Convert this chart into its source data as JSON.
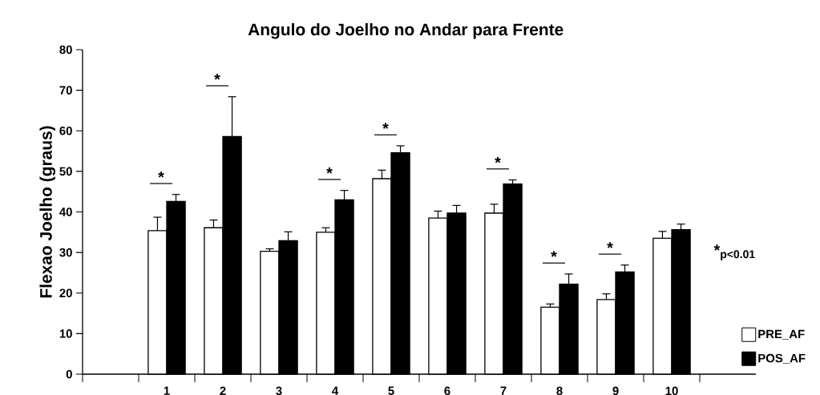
{
  "chart_data": {
    "type": "bar",
    "title": "Angulo do Joelho no Andar para Frente",
    "ylabel": "Flexao Joelho (graus)",
    "categories": [
      "1",
      "2",
      "3",
      "4",
      "5",
      "6",
      "7",
      "8",
      "9",
      "10"
    ],
    "series": [
      {
        "name": "PRE_AF",
        "color": "#ffffff",
        "values": [
          35.4,
          36.1,
          30.3,
          35.0,
          48.2,
          38.5,
          39.7,
          16.5,
          18.4,
          33.5
        ],
        "errors": [
          [
            35.4,
            38.7
          ],
          [
            36.1,
            38.0
          ],
          [
            30.3,
            30.9
          ],
          [
            35.0,
            36.1
          ],
          [
            48.2,
            50.3
          ],
          [
            38.5,
            40.2
          ],
          [
            39.7,
            41.9
          ],
          [
            16.5,
            17.3
          ],
          [
            18.4,
            19.8
          ],
          [
            33.5,
            35.2
          ]
        ]
      },
      {
        "name": "POS_AF",
        "color": "#000000",
        "values": [
          42.6,
          58.6,
          32.9,
          43.0,
          54.6,
          39.7,
          46.9,
          22.2,
          25.2,
          35.6
        ],
        "errors": [
          [
            42.6,
            44.3
          ],
          [
            58.6,
            68.4
          ],
          [
            32.9,
            35.1
          ],
          [
            43.0,
            45.3
          ],
          [
            54.6,
            56.3
          ],
          [
            39.7,
            41.6
          ],
          [
            46.9,
            47.9
          ],
          [
            22.2,
            24.7
          ],
          [
            25.2,
            26.9
          ],
          [
            35.6,
            37.0
          ]
        ]
      }
    ],
    "ylim": [
      0,
      80
    ],
    "yticks": [
      0,
      10,
      20,
      30,
      40,
      50,
      60,
      70,
      80
    ],
    "grid": false,
    "legend": "bottom right",
    "annotations": [
      "*",
      "*",
      "*",
      "*",
      "*",
      "*",
      "*",
      "*$_{p<0.01}$"
    ]
  }
}
